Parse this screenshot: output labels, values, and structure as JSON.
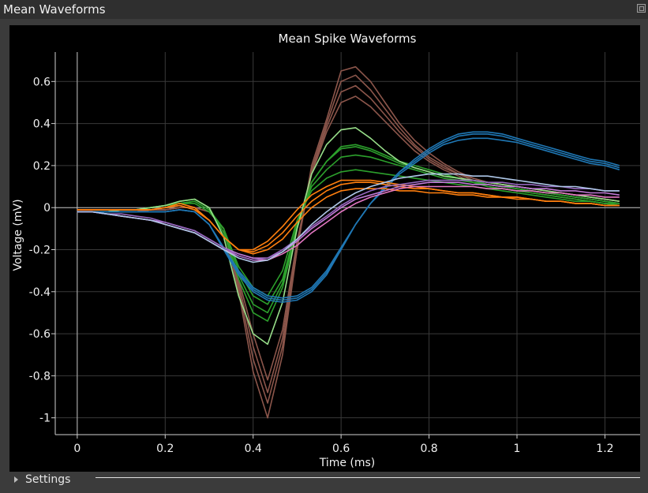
{
  "window": {
    "title": "Mean Waveforms"
  },
  "settings": {
    "label": "Settings"
  },
  "chart_data": {
    "type": "line",
    "title": "Mean Spike Waveforms",
    "xlabel": "Time (ms)",
    "ylabel": "Voltage (mV)",
    "xlim": [
      -0.05,
      1.28
    ],
    "ylim": [
      -1.08,
      0.74
    ],
    "xticks": [
      0,
      0.2,
      0.4,
      0.6,
      0.8,
      1,
      1.2
    ],
    "xtick_labels": [
      "0",
      "0.2",
      "0.4",
      "0.6",
      "0.8",
      "1",
      "1.2"
    ],
    "yticks": [
      -1,
      -0.8,
      -0.6,
      -0.4,
      -0.2,
      0,
      0.2,
      0.4,
      0.6
    ],
    "ytick_labels": [
      "-1",
      "-0.8",
      "-0.6",
      "-0.4",
      "-0.2",
      "0",
      "0.2",
      "0.4",
      "0.6"
    ],
    "grid": true,
    "x": [
      0,
      0.033,
      0.067,
      0.1,
      0.133,
      0.167,
      0.2,
      0.233,
      0.267,
      0.3,
      0.333,
      0.367,
      0.4,
      0.433,
      0.467,
      0.5,
      0.533,
      0.567,
      0.6,
      0.633,
      0.667,
      0.7,
      0.733,
      0.767,
      0.8,
      0.833,
      0.867,
      0.9,
      0.933,
      0.967,
      1,
      1.033,
      1.067,
      1.1,
      1.133,
      1.167,
      1.2,
      1.233
    ],
    "series": [
      {
        "color": "#8c564b",
        "values": [
          -0.02,
          -0.02,
          -0.02,
          -0.02,
          -0.02,
          -0.01,
          -0.01,
          0,
          0,
          -0.02,
          -0.1,
          -0.4,
          -0.78,
          -1.0,
          -0.7,
          -0.2,
          0.2,
          0.42,
          0.65,
          0.67,
          0.6,
          0.5,
          0.4,
          0.32,
          0.26,
          0.21,
          0.17,
          0.14,
          0.12,
          0.11,
          0.1,
          0.09,
          0.08,
          0.07,
          0.06,
          0.05,
          0.04,
          0.03
        ]
      },
      {
        "color": "#8c564b",
        "values": [
          -0.02,
          -0.02,
          -0.02,
          -0.02,
          -0.02,
          -0.01,
          -0.01,
          0,
          0,
          -0.02,
          -0.1,
          -0.38,
          -0.72,
          -0.93,
          -0.66,
          -0.2,
          0.18,
          0.4,
          0.6,
          0.63,
          0.56,
          0.47,
          0.38,
          0.3,
          0.24,
          0.2,
          0.16,
          0.14,
          0.12,
          0.11,
          0.1,
          0.09,
          0.08,
          0.07,
          0.06,
          0.05,
          0.04,
          0.03
        ]
      },
      {
        "color": "#8c564b",
        "values": [
          -0.02,
          -0.02,
          -0.02,
          -0.02,
          -0.02,
          -0.01,
          -0.01,
          0,
          0,
          -0.02,
          -0.1,
          -0.36,
          -0.66,
          -0.88,
          -0.62,
          -0.18,
          0.17,
          0.38,
          0.55,
          0.58,
          0.52,
          0.44,
          0.36,
          0.29,
          0.23,
          0.19,
          0.16,
          0.13,
          0.11,
          0.1,
          0.09,
          0.08,
          0.07,
          0.06,
          0.05,
          0.04,
          0.03,
          0.02
        ]
      },
      {
        "color": "#8c564b",
        "values": [
          -0.02,
          -0.02,
          -0.02,
          -0.02,
          -0.02,
          -0.01,
          -0.01,
          0,
          0,
          -0.02,
          -0.1,
          -0.34,
          -0.6,
          -0.82,
          -0.58,
          -0.16,
          0.16,
          0.36,
          0.5,
          0.53,
          0.48,
          0.41,
          0.34,
          0.27,
          0.22,
          0.18,
          0.15,
          0.12,
          0.1,
          0.09,
          0.08,
          0.07,
          0.06,
          0.05,
          0.04,
          0.03,
          0.02,
          0.01
        ]
      },
      {
        "color": "#2ca02c",
        "values": [
          -0.02,
          -0.02,
          -0.02,
          -0.01,
          -0.01,
          0,
          0.01,
          0.03,
          0.04,
          0,
          -0.12,
          -0.34,
          -0.5,
          -0.54,
          -0.38,
          -0.1,
          0.12,
          0.22,
          0.29,
          0.3,
          0.28,
          0.25,
          0.22,
          0.2,
          0.18,
          0.16,
          0.14,
          0.13,
          0.11,
          0.1,
          0.09,
          0.08,
          0.07,
          0.06,
          0.05,
          0.04,
          0.03,
          0.02
        ]
      },
      {
        "color": "#2ca02c",
        "values": [
          -0.02,
          -0.02,
          -0.02,
          -0.01,
          -0.01,
          0,
          0.01,
          0.02,
          0.03,
          -0.01,
          -0.12,
          -0.32,
          -0.46,
          -0.5,
          -0.36,
          -0.09,
          0.12,
          0.22,
          0.28,
          0.29,
          0.27,
          0.24,
          0.21,
          0.19,
          0.17,
          0.15,
          0.14,
          0.12,
          0.11,
          0.1,
          0.09,
          0.08,
          0.07,
          0.06,
          0.05,
          0.04,
          0.03,
          0.02
        ]
      },
      {
        "color": "#2ca02c",
        "values": [
          -0.02,
          -0.02,
          -0.02,
          -0.01,
          -0.01,
          0,
          0.01,
          0.02,
          0.03,
          -0.01,
          -0.1,
          -0.3,
          -0.42,
          -0.46,
          -0.34,
          -0.08,
          0.1,
          0.18,
          0.24,
          0.25,
          0.24,
          0.22,
          0.2,
          0.18,
          0.16,
          0.14,
          0.13,
          0.12,
          0.1,
          0.09,
          0.08,
          0.07,
          0.06,
          0.05,
          0.04,
          0.03,
          0.02,
          0.02
        ]
      },
      {
        "color": "#2ca02c",
        "values": [
          -0.02,
          -0.02,
          -0.02,
          -0.01,
          -0.01,
          0,
          0.01,
          0.02,
          0.02,
          -0.02,
          -0.1,
          -0.28,
          -0.38,
          -0.42,
          -0.3,
          -0.06,
          0.08,
          0.14,
          0.17,
          0.18,
          0.17,
          0.16,
          0.15,
          0.14,
          0.13,
          0.12,
          0.11,
          0.1,
          0.09,
          0.08,
          0.07,
          0.06,
          0.05,
          0.04,
          0.03,
          0.03,
          0.02,
          0.01
        ]
      },
      {
        "color": "#98df8a",
        "values": [
          -0.02,
          -0.02,
          -0.02,
          -0.01,
          -0.01,
          0,
          0.01,
          0.03,
          0.04,
          0,
          -0.14,
          -0.42,
          -0.6,
          -0.65,
          -0.45,
          -0.1,
          0.16,
          0.3,
          0.37,
          0.38,
          0.33,
          0.27,
          0.22,
          0.19,
          0.17,
          0.15,
          0.14,
          0.13,
          0.12,
          0.11,
          0.1,
          0.09,
          0.08,
          0.07,
          0.06,
          0.05,
          0.04,
          0.03
        ]
      },
      {
        "color": "#1f77b4",
        "values": [
          -0.02,
          -0.02,
          -0.02,
          -0.02,
          -0.02,
          -0.02,
          -0.02,
          -0.01,
          -0.02,
          -0.08,
          -0.2,
          -0.32,
          -0.4,
          -0.44,
          -0.45,
          -0.44,
          -0.4,
          -0.32,
          -0.2,
          -0.08,
          0.02,
          0.1,
          0.17,
          0.23,
          0.28,
          0.32,
          0.35,
          0.36,
          0.36,
          0.35,
          0.33,
          0.31,
          0.29,
          0.27,
          0.25,
          0.23,
          0.22,
          0.2
        ]
      },
      {
        "color": "#1f77b4",
        "values": [
          -0.02,
          -0.02,
          -0.02,
          -0.02,
          -0.02,
          -0.02,
          -0.02,
          -0.01,
          -0.02,
          -0.08,
          -0.19,
          -0.31,
          -0.39,
          -0.43,
          -0.44,
          -0.43,
          -0.39,
          -0.31,
          -0.2,
          -0.08,
          0.02,
          0.1,
          0.17,
          0.22,
          0.27,
          0.31,
          0.34,
          0.35,
          0.35,
          0.34,
          0.32,
          0.3,
          0.28,
          0.26,
          0.24,
          0.22,
          0.21,
          0.19
        ]
      },
      {
        "color": "#1f77b4",
        "values": [
          -0.02,
          -0.02,
          -0.02,
          -0.02,
          -0.02,
          -0.02,
          -0.02,
          -0.01,
          -0.02,
          -0.08,
          -0.19,
          -0.3,
          -0.38,
          -0.42,
          -0.43,
          -0.42,
          -0.38,
          -0.3,
          -0.19,
          -0.08,
          0.02,
          0.09,
          0.16,
          0.21,
          0.26,
          0.3,
          0.32,
          0.33,
          0.33,
          0.32,
          0.31,
          0.29,
          0.27,
          0.25,
          0.23,
          0.21,
          0.2,
          0.18
        ]
      },
      {
        "color": "#ff7f0e",
        "values": [
          -0.01,
          -0.01,
          -0.01,
          -0.01,
          -0.01,
          -0.01,
          0,
          0.01,
          -0.01,
          -0.06,
          -0.14,
          -0.2,
          -0.22,
          -0.2,
          -0.15,
          -0.07,
          0,
          0.05,
          0.08,
          0.09,
          0.09,
          0.09,
          0.08,
          0.08,
          0.07,
          0.07,
          0.06,
          0.06,
          0.05,
          0.05,
          0.04,
          0.04,
          0.03,
          0.03,
          0.02,
          0.02,
          0.01,
          0.01
        ]
      },
      {
        "color": "#ff7f0e",
        "values": [
          -0.01,
          -0.01,
          -0.01,
          -0.01,
          -0.01,
          -0.01,
          0,
          0.01,
          -0.01,
          -0.06,
          -0.14,
          -0.2,
          -0.21,
          -0.18,
          -0.12,
          -0.04,
          0.03,
          0.08,
          0.11,
          0.12,
          0.12,
          0.11,
          0.1,
          0.09,
          0.09,
          0.08,
          0.07,
          0.07,
          0.06,
          0.05,
          0.05,
          0.04,
          0.03,
          0.03,
          0.02,
          0.02,
          0.01,
          0.01
        ]
      },
      {
        "color": "#ff7f0e",
        "values": [
          -0.01,
          -0.01,
          -0.01,
          -0.01,
          -0.01,
          -0.01,
          0,
          0.02,
          0,
          -0.06,
          -0.14,
          -0.2,
          -0.2,
          -0.16,
          -0.09,
          -0.01,
          0.06,
          0.1,
          0.13,
          0.13,
          0.13,
          0.12,
          0.11,
          0.1,
          0.09,
          0.08,
          0.07,
          0.07,
          0.06,
          0.05,
          0.05,
          0.04,
          0.03,
          0.03,
          0.02,
          0.02,
          0.01,
          0.01
        ]
      },
      {
        "color": "#e377c2",
        "values": [
          -0.02,
          -0.02,
          -0.03,
          -0.04,
          -0.05,
          -0.06,
          -0.08,
          -0.1,
          -0.12,
          -0.16,
          -0.2,
          -0.23,
          -0.25,
          -0.25,
          -0.22,
          -0.18,
          -0.12,
          -0.07,
          -0.02,
          0.02,
          0.05,
          0.07,
          0.09,
          0.1,
          0.1,
          0.1,
          0.1,
          0.1,
          0.09,
          0.09,
          0.08,
          0.08,
          0.07,
          0.07,
          0.06,
          0.06,
          0.05,
          0.05
        ]
      },
      {
        "color": "#c079d6",
        "values": [
          -0.02,
          -0.02,
          -0.03,
          -0.04,
          -0.05,
          -0.06,
          -0.07,
          -0.09,
          -0.11,
          -0.15,
          -0.19,
          -0.22,
          -0.24,
          -0.24,
          -0.21,
          -0.16,
          -0.1,
          -0.05,
          0,
          0.04,
          0.06,
          0.08,
          0.1,
          0.11,
          0.12,
          0.12,
          0.12,
          0.11,
          0.11,
          0.1,
          0.1,
          0.09,
          0.09,
          0.08,
          0.08,
          0.07,
          0.07,
          0.06
        ]
      },
      {
        "color": "#9467bd",
        "values": [
          -0.02,
          -0.02,
          -0.03,
          -0.03,
          -0.04,
          -0.05,
          -0.07,
          -0.09,
          -0.11,
          -0.15,
          -0.19,
          -0.23,
          -0.25,
          -0.24,
          -0.2,
          -0.15,
          -0.09,
          -0.04,
          0.01,
          0.05,
          0.08,
          0.1,
          0.11,
          0.12,
          0.13,
          0.13,
          0.13,
          0.13,
          0.12,
          0.12,
          0.11,
          0.11,
          0.1,
          0.1,
          0.09,
          0.09,
          0.08,
          0.08
        ]
      },
      {
        "color": "#aec7e8",
        "values": [
          -0.02,
          -0.02,
          -0.03,
          -0.04,
          -0.05,
          -0.06,
          -0.08,
          -0.1,
          -0.12,
          -0.16,
          -0.2,
          -0.24,
          -0.26,
          -0.25,
          -0.21,
          -0.15,
          -0.08,
          -0.02,
          0.03,
          0.07,
          0.1,
          0.12,
          0.14,
          0.15,
          0.16,
          0.16,
          0.16,
          0.15,
          0.15,
          0.14,
          0.13,
          0.12,
          0.11,
          0.1,
          0.1,
          0.09,
          0.08,
          0.08
        ]
      }
    ]
  }
}
